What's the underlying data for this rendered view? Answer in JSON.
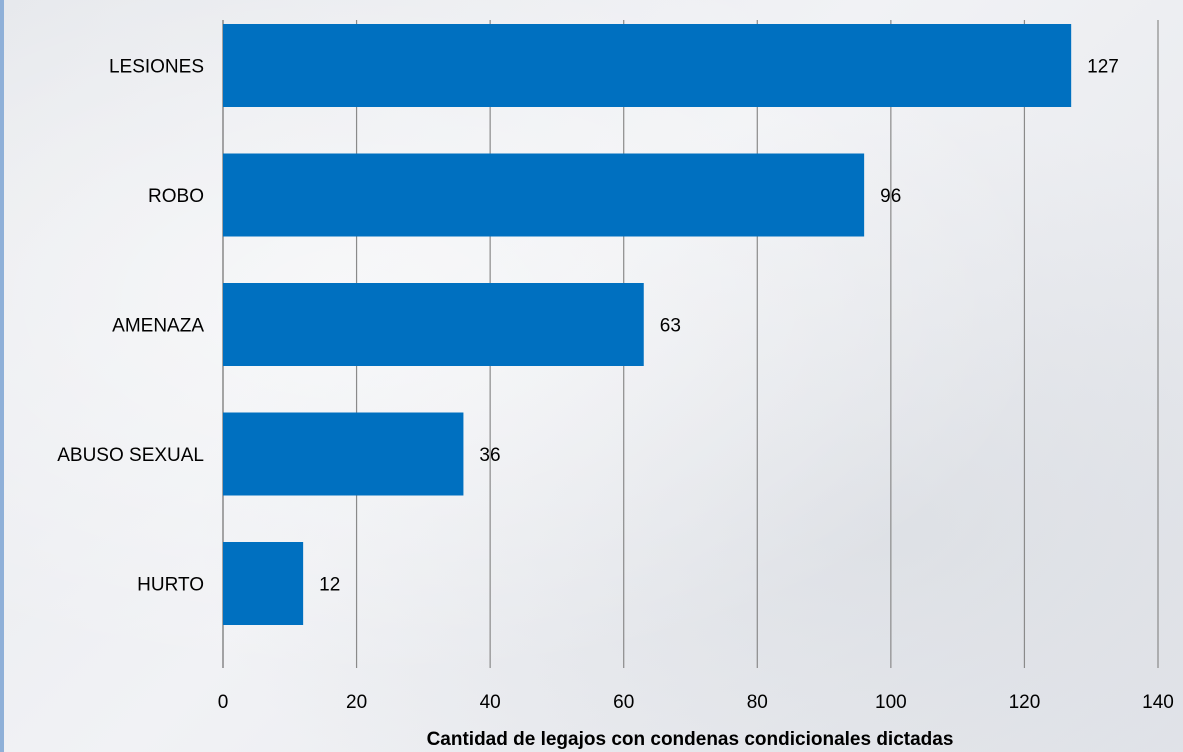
{
  "colors": {
    "bar": "#0070c0",
    "grid": "#8a8a8a"
  },
  "chart_data": {
    "type": "bar",
    "orientation": "horizontal",
    "categories": [
      "LESIONES",
      "ROBO",
      "AMENAZA",
      "ABUSO SEXUAL",
      "HURTO"
    ],
    "values": [
      127,
      96,
      63,
      36,
      12
    ],
    "data_labels": [
      "127",
      "96",
      "63",
      "36",
      "12"
    ],
    "title": "",
    "xlabel": "Cantidad de legajos con condenas condicionales dictadas",
    "ylabel": "",
    "xlim": [
      0,
      140
    ],
    "xticks": [
      0,
      20,
      40,
      60,
      80,
      100,
      120,
      140
    ],
    "xtick_labels": [
      "0",
      "20",
      "40",
      "60",
      "80",
      "100",
      "120",
      "140"
    ],
    "grid": "vertical",
    "legend": "none"
  }
}
